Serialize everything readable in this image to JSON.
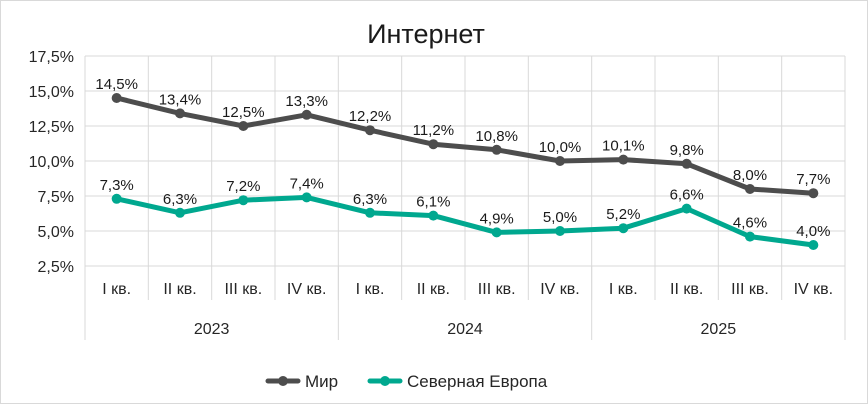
{
  "chart_data": {
    "type": "line",
    "title": "Интернет",
    "xlabel": "",
    "ylabel": "",
    "ylim": [
      2.5,
      17.5
    ],
    "y_ticks": [
      "2,5%",
      "5,0%",
      "7,5%",
      "10,0%",
      "12,5%",
      "15,0%",
      "17,5%"
    ],
    "y_tick_values": [
      2.5,
      5.0,
      7.5,
      10.0,
      12.5,
      15.0,
      17.5
    ],
    "categories": [
      "I кв.",
      "II кв.",
      "III кв.",
      "IV кв.",
      "I кв.",
      "II кв.",
      "III кв.",
      "IV кв.",
      "I кв.",
      "II кв.",
      "III кв.",
      "IV кв."
    ],
    "groups": [
      {
        "label": "2023",
        "count": 4
      },
      {
        "label": "2024",
        "count": 4
      },
      {
        "label": "2025",
        "count": 4
      }
    ],
    "series": [
      {
        "name": "Мир",
        "color": "#4d4d4d",
        "values": [
          14.5,
          13.4,
          12.5,
          13.3,
          12.2,
          11.2,
          10.8,
          10.0,
          10.1,
          9.8,
          8.0,
          7.7
        ],
        "labels": [
          "14,5%",
          "13,4%",
          "12,5%",
          "13,3%",
          "12,2%",
          "11,2%",
          "10,8%",
          "10,0%",
          "10,1%",
          "9,8%",
          "8,0%",
          "7,7%"
        ]
      },
      {
        "name": "Северная Европа",
        "color": "#00a88f",
        "values": [
          7.3,
          6.3,
          7.2,
          7.4,
          6.3,
          6.1,
          4.9,
          5.0,
          5.2,
          6.6,
          4.6,
          4.0
        ],
        "labels": [
          "7,3%",
          "6,3%",
          "7,2%",
          "7,4%",
          "6,3%",
          "6,1%",
          "4,9%",
          "5,0%",
          "5,2%",
          "6,6%",
          "4,6%",
          "4,0%"
        ]
      }
    ],
    "grid": true,
    "legend_position": "bottom"
  }
}
